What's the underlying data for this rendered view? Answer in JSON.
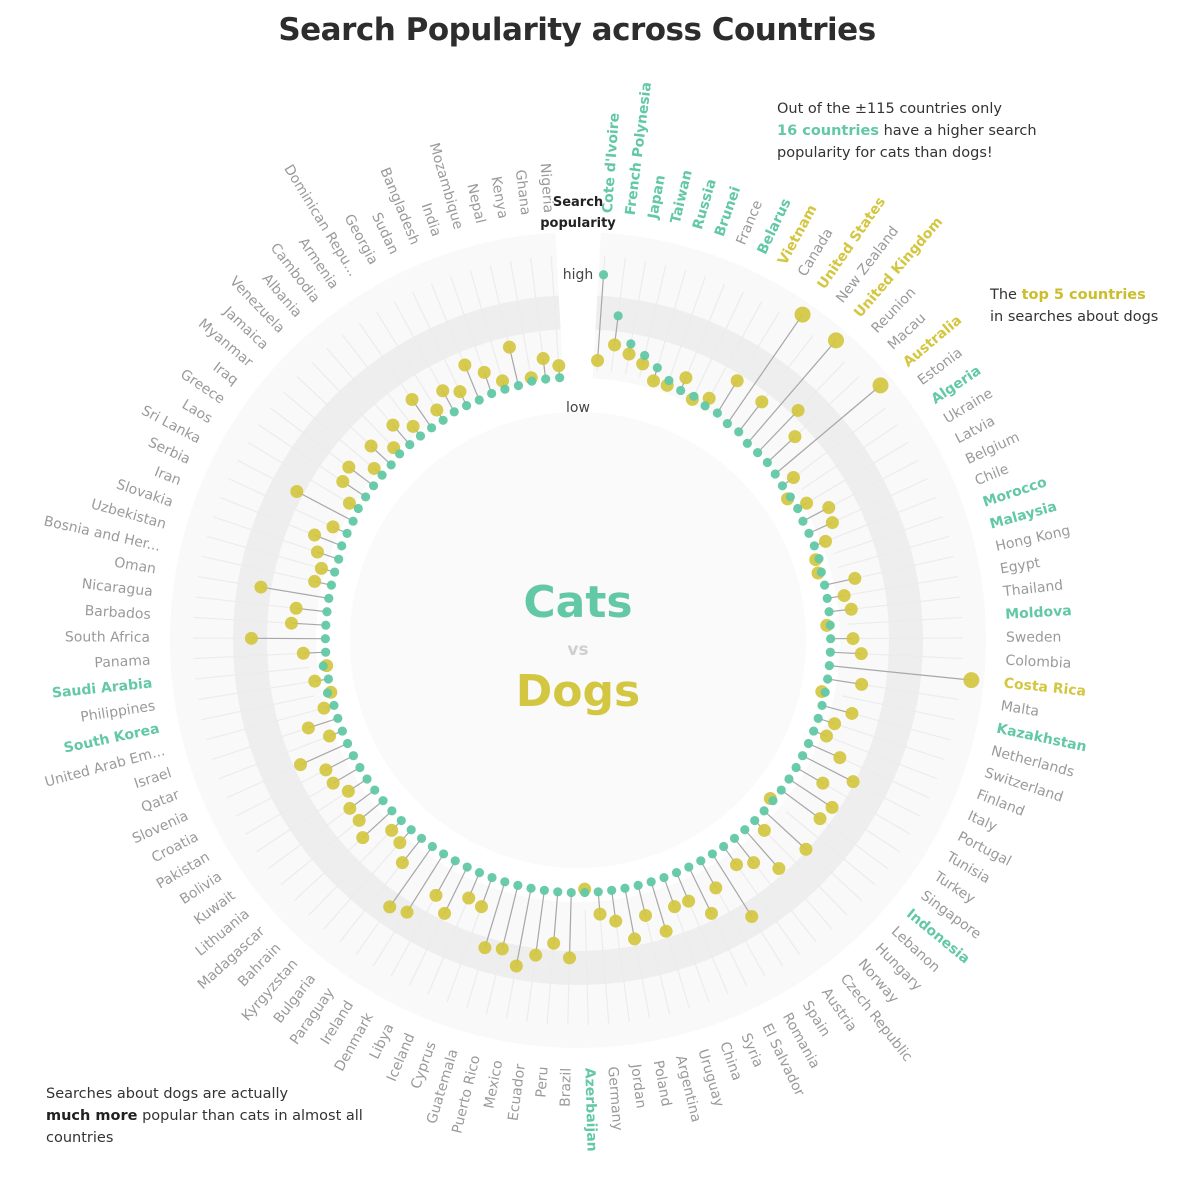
{
  "title": "Search Popularity across Countries",
  "notes": {
    "top_pre": "Out of the ±115 countries only",
    "top_highlight": "16 countries",
    "top_post": "have a higher search popularity for cats than dogs!",
    "right_pre": "The",
    "right_highlight": "top 5 countries",
    "right_post": "in searches about dogs",
    "bottom_pre": "Searches about dogs are actually",
    "bottom_highlight": "much more",
    "bottom_post": "popular than cats in almost all countries"
  },
  "center": {
    "cats": "Cats",
    "vs": "vs",
    "dogs": "Dogs"
  },
  "scale_labels": {
    "title_line1": "Search",
    "title_line2": "popularity",
    "high": "high",
    "low": "low"
  },
  "colors": {
    "cats": "#62c8a6",
    "dogs": "#d3c640",
    "neutral": "#9a9a9a",
    "ring": "#eeeeee"
  },
  "chart_data": {
    "type": "radial-lollipop",
    "title": "Search Popularity across Countries",
    "series": [
      {
        "name": "Cats",
        "key": "cats"
      },
      {
        "name": "Dogs",
        "key": "dogs"
      }
    ],
    "scale": {
      "low": "low",
      "high": "high",
      "min": 0,
      "max": 1
    },
    "countries": [
      {
        "name": "Cote d'Ivoire",
        "cats": 0.78,
        "dogs": 0.28,
        "label": "cats"
      },
      {
        "name": "French Polynesia",
        "cats": 0.55,
        "dogs": 0.38,
        "label": "cats"
      },
      {
        "name": "Japan",
        "cats": 0.4,
        "dogs": 0.34,
        "label": "cats"
      },
      {
        "name": "Taiwan",
        "cats": 0.35,
        "dogs": 0.3,
        "label": "cats"
      },
      {
        "name": "Russia",
        "cats": 0.3,
        "dogs": 0.22,
        "label": "cats"
      },
      {
        "name": "Brunei",
        "cats": 0.25,
        "dogs": 0.22,
        "label": "cats"
      },
      {
        "name": "France",
        "cats": 0.22,
        "dogs": 0.3,
        "label": "neutral"
      },
      {
        "name": "Belarus",
        "cats": 0.22,
        "dogs": 0.2,
        "label": "cats"
      },
      {
        "name": "Vietnam",
        "cats": 0.2,
        "dogs": 0.25,
        "label": "dogs"
      },
      {
        "name": "Canada",
        "cats": 0.2,
        "dogs": 0.42,
        "label": "neutral"
      },
      {
        "name": "United States",
        "cats": 0.18,
        "dogs": 0.95,
        "label": "dogs"
      },
      {
        "name": "New Zealand",
        "cats": 0.18,
        "dogs": 0.4,
        "label": "neutral"
      },
      {
        "name": "United Kingdom",
        "cats": 0.16,
        "dogs": 0.95,
        "label": "dogs"
      },
      {
        "name": "Reunion",
        "cats": 0.16,
        "dogs": 0.5,
        "label": "neutral"
      },
      {
        "name": "Macau",
        "cats": 0.16,
        "dogs": 0.38,
        "label": "neutral"
      },
      {
        "name": "Australia",
        "cats": 0.15,
        "dogs": 0.95,
        "label": "dogs"
      },
      {
        "name": "Estonia",
        "cats": 0.14,
        "dogs": 0.22,
        "label": "neutral"
      },
      {
        "name": "Algeria",
        "cats": 0.14,
        "dogs": 0.12,
        "label": "cats"
      },
      {
        "name": "Ukraine",
        "cats": 0.14,
        "dogs": 0.2,
        "label": "neutral"
      },
      {
        "name": "Latvia",
        "cats": 0.13,
        "dogs": 0.3,
        "label": "neutral"
      },
      {
        "name": "Belgium",
        "cats": 0.13,
        "dogs": 0.28,
        "label": "neutral"
      },
      {
        "name": "Chile",
        "cats": 0.13,
        "dogs": 0.2,
        "label": "neutral"
      },
      {
        "name": "Morocco",
        "cats": 0.13,
        "dogs": 0.11,
        "label": "cats"
      },
      {
        "name": "Malaysia",
        "cats": 0.12,
        "dogs": 0.1,
        "label": "cats"
      },
      {
        "name": "Hong Kong",
        "cats": 0.12,
        "dogs": 0.3,
        "label": "neutral"
      },
      {
        "name": "Egypt",
        "cats": 0.12,
        "dogs": 0.22,
        "label": "neutral"
      },
      {
        "name": "Thailand",
        "cats": 0.12,
        "dogs": 0.25,
        "label": "neutral"
      },
      {
        "name": "Moldova",
        "cats": 0.12,
        "dogs": 0.1,
        "label": "cats"
      },
      {
        "name": "Sweden",
        "cats": 0.12,
        "dogs": 0.25,
        "label": "neutral"
      },
      {
        "name": "Colombia",
        "cats": 0.12,
        "dogs": 0.3,
        "label": "neutral"
      },
      {
        "name": "Costa Rica",
        "cats": 0.12,
        "dogs": 0.95,
        "label": "dogs"
      },
      {
        "name": "Malta",
        "cats": 0.12,
        "dogs": 0.32,
        "label": "neutral"
      },
      {
        "name": "Kazakhstan",
        "cats": 0.12,
        "dogs": 0.1,
        "label": "cats"
      },
      {
        "name": "Netherlands",
        "cats": 0.12,
        "dogs": 0.3,
        "label": "neutral"
      },
      {
        "name": "Switzerland",
        "cats": 0.12,
        "dogs": 0.22,
        "label": "neutral"
      },
      {
        "name": "Finland",
        "cats": 0.12,
        "dogs": 0.2,
        "label": "neutral"
      },
      {
        "name": "Italy",
        "cats": 0.12,
        "dogs": 0.32,
        "label": "neutral"
      },
      {
        "name": "Portugal",
        "cats": 0.12,
        "dogs": 0.45,
        "label": "neutral"
      },
      {
        "name": "Tunisia",
        "cats": 0.12,
        "dogs": 0.3,
        "label": "neutral"
      },
      {
        "name": "Turkey",
        "cats": 0.12,
        "dogs": 0.42,
        "label": "neutral"
      },
      {
        "name": "Singapore",
        "cats": 0.12,
        "dogs": 0.4,
        "label": "neutral"
      },
      {
        "name": "Indonesia",
        "cats": 0.12,
        "dogs": 0.1,
        "label": "cats"
      },
      {
        "name": "Lebanon",
        "cats": 0.12,
        "dogs": 0.45,
        "label": "neutral"
      },
      {
        "name": "Hungary",
        "cats": 0.12,
        "dogs": 0.2,
        "label": "neutral"
      },
      {
        "name": "Norway",
        "cats": 0.12,
        "dogs": 0.42,
        "label": "neutral"
      },
      {
        "name": "Czech Republic",
        "cats": 0.12,
        "dogs": 0.3,
        "label": "neutral"
      },
      {
        "name": "Austria",
        "cats": 0.12,
        "dogs": 0.25,
        "label": "neutral"
      },
      {
        "name": "Spain",
        "cats": 0.12,
        "dogs": 0.55,
        "label": "neutral"
      },
      {
        "name": "Romania",
        "cats": 0.12,
        "dogs": 0.3,
        "label": "neutral"
      },
      {
        "name": "El Salvador",
        "cats": 0.12,
        "dogs": 0.42,
        "label": "neutral"
      },
      {
        "name": "Syria",
        "cats": 0.12,
        "dogs": 0.3,
        "label": "neutral"
      },
      {
        "name": "China",
        "cats": 0.12,
        "dogs": 0.3,
        "label": "neutral"
      },
      {
        "name": "Uruguay",
        "cats": 0.12,
        "dogs": 0.42,
        "label": "neutral"
      },
      {
        "name": "Argentina",
        "cats": 0.12,
        "dogs": 0.3,
        "label": "neutral"
      },
      {
        "name": "Poland",
        "cats": 0.12,
        "dogs": 0.42,
        "label": "neutral"
      },
      {
        "name": "Jordan",
        "cats": 0.12,
        "dogs": 0.3,
        "label": "neutral"
      },
      {
        "name": "Germany",
        "cats": 0.12,
        "dogs": 0.25,
        "label": "neutral"
      },
      {
        "name": "Azerbaijan",
        "cats": 0.12,
        "dogs": 0.1,
        "label": "cats"
      },
      {
        "name": "Brazil",
        "cats": 0.12,
        "dogs": 0.5,
        "label": "neutral"
      },
      {
        "name": "Peru",
        "cats": 0.12,
        "dogs": 0.42,
        "label": "neutral"
      },
      {
        "name": "Ecuador",
        "cats": 0.12,
        "dogs": 0.5,
        "label": "neutral"
      },
      {
        "name": "Mexico",
        "cats": 0.12,
        "dogs": 0.58,
        "label": "neutral"
      },
      {
        "name": "Puerto Rico",
        "cats": 0.12,
        "dogs": 0.5,
        "label": "neutral"
      },
      {
        "name": "Guatemala",
        "cats": 0.12,
        "dogs": 0.52,
        "label": "neutral"
      },
      {
        "name": "Cyprus",
        "cats": 0.12,
        "dogs": 0.3,
        "label": "neutral"
      },
      {
        "name": "Iceland",
        "cats": 0.12,
        "dogs": 0.28,
        "label": "neutral"
      },
      {
        "name": "Libya",
        "cats": 0.12,
        "dogs": 0.42,
        "label": "neutral"
      },
      {
        "name": "Denmark",
        "cats": 0.12,
        "dogs": 0.35,
        "label": "neutral"
      },
      {
        "name": "Ireland",
        "cats": 0.12,
        "dogs": 0.52,
        "label": "neutral"
      },
      {
        "name": "Paraguay",
        "cats": 0.12,
        "dogs": 0.55,
        "label": "neutral"
      },
      {
        "name": "Bulgaria",
        "cats": 0.12,
        "dogs": 0.3,
        "label": "neutral"
      },
      {
        "name": "Kyrgyzstan",
        "cats": 0.12,
        "dogs": 0.22,
        "label": "neutral"
      },
      {
        "name": "Bahrain",
        "cats": 0.12,
        "dogs": 0.2,
        "label": "neutral"
      },
      {
        "name": "Madagascar",
        "cats": 0.12,
        "dogs": 0.35,
        "label": "neutral"
      },
      {
        "name": "Lithuania",
        "cats": 0.12,
        "dogs": 0.3,
        "label": "neutral"
      },
      {
        "name": "Kuwait",
        "cats": 0.12,
        "dogs": 0.3,
        "label": "neutral"
      },
      {
        "name": "Bolivia",
        "cats": 0.12,
        "dogs": 0.25,
        "label": "neutral"
      },
      {
        "name": "Pakistan",
        "cats": 0.12,
        "dogs": 0.3,
        "label": "neutral"
      },
      {
        "name": "Croatia",
        "cats": 0.12,
        "dogs": 0.3,
        "label": "neutral"
      },
      {
        "name": "Slovenia",
        "cats": 0.12,
        "dogs": 0.42,
        "label": "neutral"
      },
      {
        "name": "Qatar",
        "cats": 0.12,
        "dogs": 0.2,
        "label": "neutral"
      },
      {
        "name": "Israel",
        "cats": 0.12,
        "dogs": 0.3,
        "label": "neutral"
      },
      {
        "name": "United Arab Em...",
        "cats": 0.12,
        "dogs": 0.18,
        "label": "neutral"
      },
      {
        "name": "South Korea",
        "cats": 0.14,
        "dogs": 0.12,
        "label": "cats"
      },
      {
        "name": "Philippines",
        "cats": 0.12,
        "dogs": 0.2,
        "label": "neutral"
      },
      {
        "name": "Saudi Arabia",
        "cats": 0.14,
        "dogs": 0.12,
        "label": "cats"
      },
      {
        "name": "Panama",
        "cats": 0.12,
        "dogs": 0.25,
        "label": "neutral"
      },
      {
        "name": "South Africa",
        "cats": 0.12,
        "dogs": 0.55,
        "label": "neutral"
      },
      {
        "name": "Barbados",
        "cats": 0.12,
        "dogs": 0.32,
        "label": "neutral"
      },
      {
        "name": "Nicaragua",
        "cats": 0.12,
        "dogs": 0.3,
        "label": "neutral"
      },
      {
        "name": "Oman",
        "cats": 0.12,
        "dogs": 0.52,
        "label": "neutral"
      },
      {
        "name": "Bosnia and Her...",
        "cats": 0.12,
        "dogs": 0.22,
        "label": "neutral"
      },
      {
        "name": "Uzbekistan",
        "cats": 0.12,
        "dogs": 0.2,
        "label": "neutral"
      },
      {
        "name": "Slovakia",
        "cats": 0.12,
        "dogs": 0.25,
        "label": "neutral"
      },
      {
        "name": "Iran",
        "cats": 0.13,
        "dogs": 0.3,
        "label": "neutral"
      },
      {
        "name": "Serbia",
        "cats": 0.13,
        "dogs": 0.22,
        "label": "neutral"
      },
      {
        "name": "Sri Lanka",
        "cats": 0.13,
        "dogs": 0.5,
        "label": "neutral"
      },
      {
        "name": "Laos",
        "cats": 0.14,
        "dogs": 0.2,
        "label": "neutral"
      },
      {
        "name": "Greece",
        "cats": 0.14,
        "dogs": 0.3,
        "label": "neutral"
      },
      {
        "name": "Iraq",
        "cats": 0.14,
        "dogs": 0.32,
        "label": "neutral"
      },
      {
        "name": "Myanmar",
        "cats": 0.14,
        "dogs": 0.2,
        "label": "neutral"
      },
      {
        "name": "Jamaica",
        "cats": 0.14,
        "dogs": 0.3,
        "label": "neutral"
      },
      {
        "name": "Venezuela",
        "cats": 0.15,
        "dogs": 0.2,
        "label": "neutral"
      },
      {
        "name": "Albania",
        "cats": 0.15,
        "dogs": 0.3,
        "label": "neutral"
      },
      {
        "name": "Cambodia",
        "cats": 0.15,
        "dogs": 0.22,
        "label": "neutral"
      },
      {
        "name": "Armenia",
        "cats": 0.15,
        "dogs": 0.35,
        "label": "neutral"
      },
      {
        "name": "Dominican Repu...",
        "cats": 0.15,
        "dogs": 0.22,
        "label": "neutral"
      },
      {
        "name": "Georgia",
        "cats": 0.16,
        "dogs": 0.3,
        "label": "neutral"
      },
      {
        "name": "Sudan",
        "cats": 0.16,
        "dogs": 0.25,
        "label": "neutral"
      },
      {
        "name": "Bangladesh",
        "cats": 0.16,
        "dogs": 0.38,
        "label": "neutral"
      },
      {
        "name": "India",
        "cats": 0.17,
        "dogs": 0.3,
        "label": "neutral"
      },
      {
        "name": "Mozambique",
        "cats": 0.17,
        "dogs": 0.22,
        "label": "neutral"
      },
      {
        "name": "Nepal",
        "cats": 0.17,
        "dogs": 0.4,
        "label": "neutral"
      },
      {
        "name": "Kenya",
        "cats": 0.18,
        "dogs": 0.2,
        "label": "neutral"
      },
      {
        "name": "Ghana",
        "cats": 0.18,
        "dogs": 0.3,
        "label": "neutral"
      },
      {
        "name": "Nigeria",
        "cats": 0.18,
        "dogs": 0.25,
        "label": "neutral"
      }
    ]
  }
}
